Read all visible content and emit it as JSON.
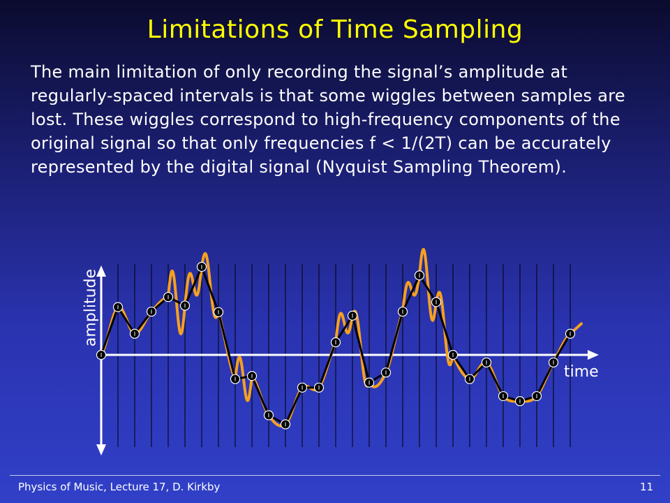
{
  "slide": {
    "title": "Limitations of Time Sampling",
    "body": "The main limitation of only recording the signal’s amplitude at regularly-spaced intervals is that some wiggles between samples are lost. These wiggles correspond to high-frequency components of the original signal so that only frequencies f < 1/(2T) can be accurately represented by the digital signal (Nyquist Sampling Theorem).",
    "footer_left": "Physics of Music, Lecture 17, D. Kirkby",
    "page_number": "11"
  },
  "figure": {
    "x_axis_label": "time",
    "y_axis_label": "amplitude",
    "colors": {
      "original_signal": "#f5a020",
      "sampled_signal": "#000000",
      "axes": "#ffffff",
      "sample_grid": "#000000"
    },
    "sample_count": 29,
    "samples": [
      0.0,
      0.95,
      0.42,
      0.86,
      1.15,
      0.98,
      1.75,
      0.85,
      -0.48,
      -0.42,
      -1.2,
      -1.38,
      -0.65,
      -0.65,
      0.25,
      0.78,
      -0.55,
      -0.35,
      0.86,
      1.58,
      1.05,
      0.0,
      -0.48,
      -0.15,
      -0.82,
      -0.92,
      -0.82,
      -0.15,
      0.42
    ]
  }
}
